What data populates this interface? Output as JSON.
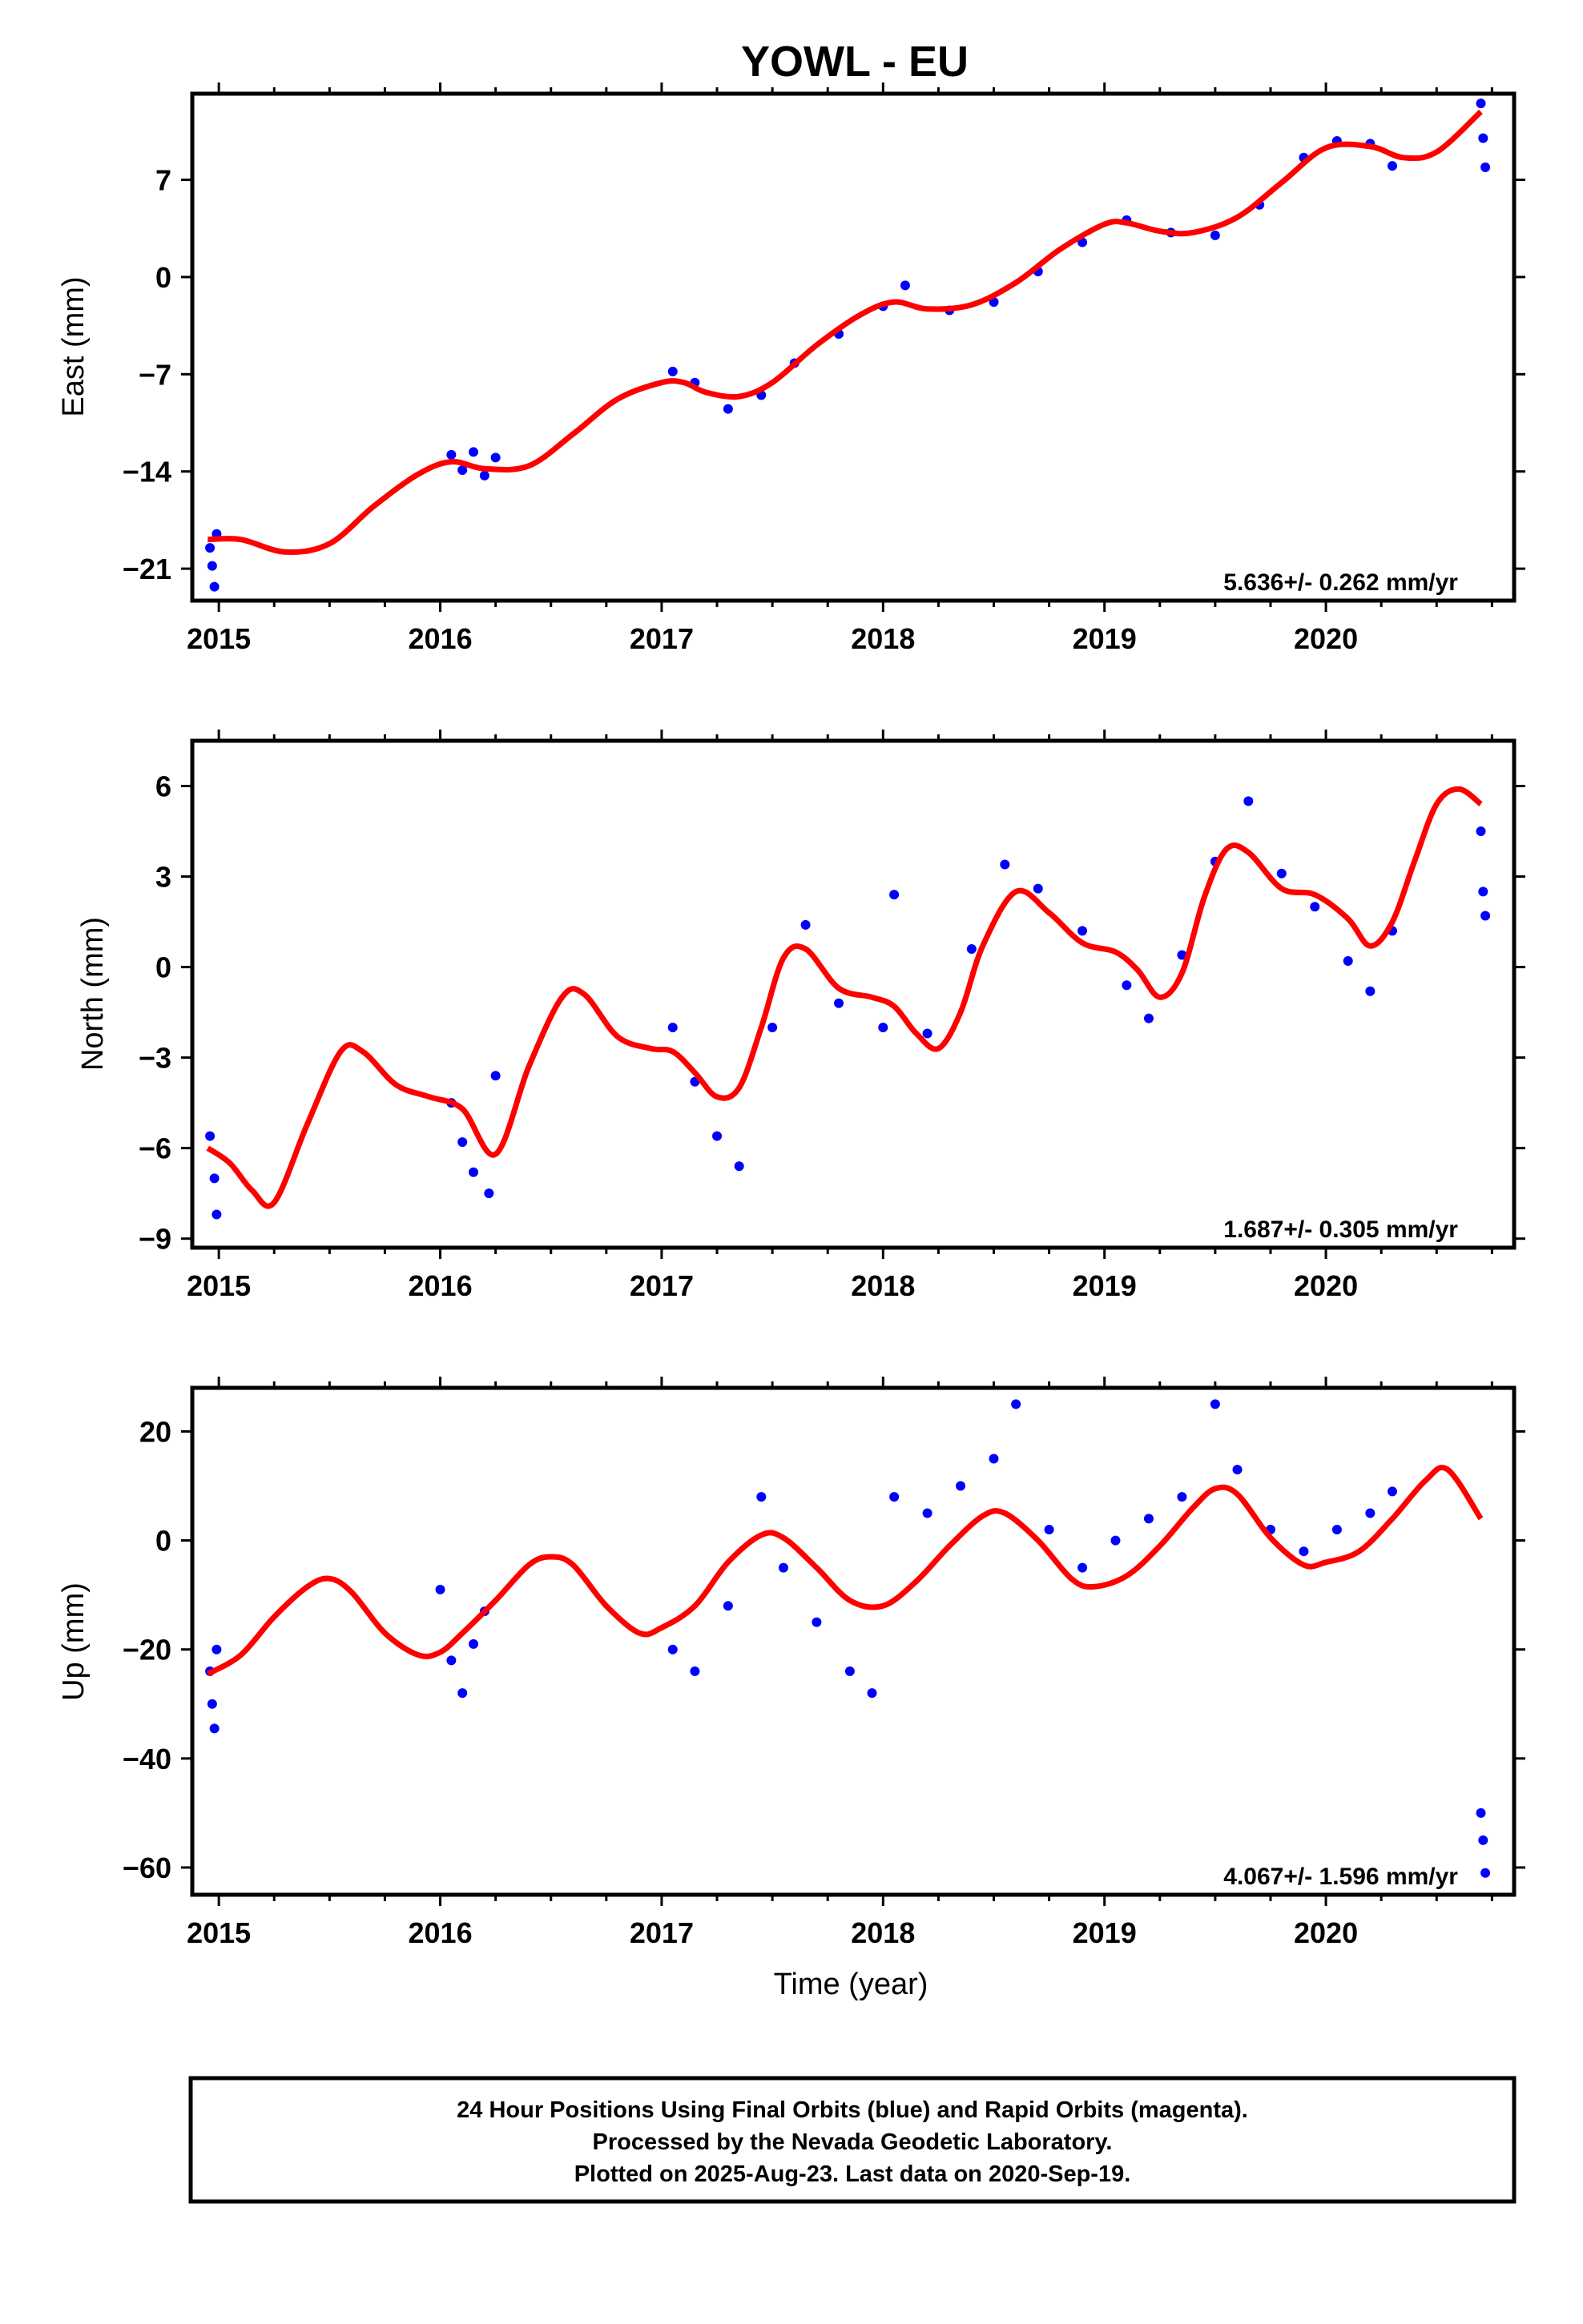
{
  "page": {
    "title": "YOWL - EU",
    "xlabel": "Time (year)"
  },
  "footer": {
    "line1": "24 Hour Positions Using Final Orbits (blue) and Rapid Orbits (magenta).",
    "line2": "Processed by the Nevada Geodetic Laboratory.",
    "line3": "Plotted on 2025-Aug-23. Last data on 2020-Sep-19."
  },
  "colors": {
    "points": "#0000ff",
    "model": "#ff0000",
    "axis": "#000000"
  },
  "chart_data": [
    {
      "type": "scatter",
      "component": "east",
      "ylabel": "East (mm)",
      "rate_label": "5.636+/- 0.262 mm/yr",
      "xlim": [
        2014.88,
        2020.85
      ],
      "ylim": [
        -23.3,
        13.2
      ],
      "xticks": [
        2015,
        2016,
        2017,
        2018,
        2019,
        2020
      ],
      "yticks": [
        -21,
        -14,
        -7,
        0,
        7
      ],
      "ytick_labels": [
        "−21",
        "−14",
        "−7",
        "0",
        "7"
      ],
      "model": {
        "x": [
          2014.95,
          2015.1,
          2015.3,
          2015.5,
          2015.7,
          2015.9,
          2016.05,
          2016.2,
          2016.4,
          2016.6,
          2016.8,
          2017.0,
          2017.1,
          2017.2,
          2017.35,
          2017.5,
          2017.7,
          2017.9,
          2018.05,
          2018.2,
          2018.4,
          2018.6,
          2018.8,
          2019.0,
          2019.1,
          2019.25,
          2019.4,
          2019.6,
          2019.8,
          2020.0,
          2020.2,
          2020.35,
          2020.5,
          2020.7
        ],
        "y": [
          -18.9,
          -18.9,
          -19.8,
          -19.2,
          -16.5,
          -14.2,
          -13.3,
          -13.8,
          -13.6,
          -11.3,
          -8.8,
          -7.6,
          -7.6,
          -8.3,
          -8.6,
          -7.6,
          -4.9,
          -2.7,
          -1.8,
          -2.3,
          -2.0,
          -0.4,
          2.0,
          3.8,
          3.9,
          3.3,
          3.2,
          4.3,
          6.8,
          9.3,
          9.4,
          8.6,
          9.0,
          11.9
        ]
      },
      "points": [
        {
          "x": 2014.96,
          "y": -19.5
        },
        {
          "x": 2014.97,
          "y": -20.8
        },
        {
          "x": 2014.98,
          "y": -22.3
        },
        {
          "x": 2014.99,
          "y": -18.5
        },
        {
          "x": 2016.05,
          "y": -12.8
        },
        {
          "x": 2016.1,
          "y": -13.9
        },
        {
          "x": 2016.15,
          "y": -12.6
        },
        {
          "x": 2016.2,
          "y": -14.3
        },
        {
          "x": 2016.25,
          "y": -13.0
        },
        {
          "x": 2017.05,
          "y": -6.8
        },
        {
          "x": 2017.15,
          "y": -7.6
        },
        {
          "x": 2017.3,
          "y": -9.5
        },
        {
          "x": 2017.45,
          "y": -8.5
        },
        {
          "x": 2017.6,
          "y": -6.2
        },
        {
          "x": 2017.8,
          "y": -4.1
        },
        {
          "x": 2018.0,
          "y": -2.1
        },
        {
          "x": 2018.1,
          "y": -0.6
        },
        {
          "x": 2018.3,
          "y": -2.4
        },
        {
          "x": 2018.5,
          "y": -1.8
        },
        {
          "x": 2018.7,
          "y": 0.4
        },
        {
          "x": 2018.9,
          "y": 2.5
        },
        {
          "x": 2019.1,
          "y": 4.1
        },
        {
          "x": 2019.3,
          "y": 3.2
        },
        {
          "x": 2019.5,
          "y": 3.0
        },
        {
          "x": 2019.7,
          "y": 5.2
        },
        {
          "x": 2019.9,
          "y": 8.6
        },
        {
          "x": 2020.05,
          "y": 9.8
        },
        {
          "x": 2020.2,
          "y": 9.6
        },
        {
          "x": 2020.3,
          "y": 8.0
        },
        {
          "x": 2020.7,
          "y": 12.5
        },
        {
          "x": 2020.71,
          "y": 10.0
        },
        {
          "x": 2020.72,
          "y": 7.9
        }
      ]
    },
    {
      "type": "scatter",
      "component": "north",
      "ylabel": "North (mm)",
      "rate_label": "1.687+/- 0.305 mm/yr",
      "xlim": [
        2014.88,
        2020.85
      ],
      "ylim": [
        -9.3,
        7.5
      ],
      "xticks": [
        2015,
        2016,
        2017,
        2018,
        2019,
        2020
      ],
      "yticks": [
        -9,
        -6,
        -3,
        0,
        3,
        6
      ],
      "ytick_labels": [
        "−9",
        "−6",
        "−3",
        "0",
        "3",
        "6"
      ],
      "model": {
        "x": [
          2014.95,
          2015.05,
          2015.15,
          2015.25,
          2015.4,
          2015.55,
          2015.65,
          2015.8,
          2015.95,
          2016.1,
          2016.25,
          2016.4,
          2016.55,
          2016.65,
          2016.8,
          2016.95,
          2017.05,
          2017.15,
          2017.25,
          2017.35,
          2017.45,
          2017.55,
          2017.65,
          2017.8,
          2017.95,
          2018.05,
          2018.15,
          2018.25,
          2018.35,
          2018.45,
          2018.6,
          2018.75,
          2018.9,
          2019.05,
          2019.15,
          2019.25,
          2019.35,
          2019.45,
          2019.55,
          2019.65,
          2019.8,
          2019.95,
          2020.1,
          2020.2,
          2020.3,
          2020.4,
          2020.5,
          2020.6,
          2020.7
        ],
        "y": [
          -6.0,
          -6.5,
          -7.4,
          -7.8,
          -5.2,
          -2.8,
          -2.8,
          -3.9,
          -4.3,
          -4.7,
          -6.2,
          -3.3,
          -1.0,
          -0.9,
          -2.3,
          -2.7,
          -2.8,
          -3.5,
          -4.3,
          -4.0,
          -2.0,
          0.3,
          0.6,
          -0.7,
          -1.0,
          -1.3,
          -2.2,
          -2.7,
          -1.5,
          0.7,
          2.5,
          1.8,
          0.8,
          0.5,
          -0.1,
          -1.0,
          -0.2,
          2.3,
          3.9,
          3.8,
          2.6,
          2.4,
          1.6,
          0.7,
          1.5,
          3.5,
          5.4,
          5.9,
          5.4
        ]
      },
      "points": [
        {
          "x": 2014.96,
          "y": -5.6
        },
        {
          "x": 2014.98,
          "y": -7.0
        },
        {
          "x": 2014.99,
          "y": -8.2
        },
        {
          "x": 2016.05,
          "y": -4.5
        },
        {
          "x": 2016.1,
          "y": -5.8
        },
        {
          "x": 2016.15,
          "y": -6.8
        },
        {
          "x": 2016.22,
          "y": -7.5
        },
        {
          "x": 2016.25,
          "y": -3.6
        },
        {
          "x": 2017.05,
          "y": -2.0
        },
        {
          "x": 2017.15,
          "y": -3.8
        },
        {
          "x": 2017.25,
          "y": -5.6
        },
        {
          "x": 2017.35,
          "y": -6.6
        },
        {
          "x": 2017.5,
          "y": -2.0
        },
        {
          "x": 2017.65,
          "y": 1.4
        },
        {
          "x": 2017.8,
          "y": -1.2
        },
        {
          "x": 2018.0,
          "y": -2.0
        },
        {
          "x": 2018.05,
          "y": 2.4
        },
        {
          "x": 2018.2,
          "y": -2.2
        },
        {
          "x": 2018.4,
          "y": 0.6
        },
        {
          "x": 2018.55,
          "y": 3.4
        },
        {
          "x": 2018.7,
          "y": 2.6
        },
        {
          "x": 2018.9,
          "y": 1.2
        },
        {
          "x": 2019.1,
          "y": -0.6
        },
        {
          "x": 2019.2,
          "y": -1.7
        },
        {
          "x": 2019.35,
          "y": 0.4
        },
        {
          "x": 2019.5,
          "y": 3.5
        },
        {
          "x": 2019.65,
          "y": 5.5
        },
        {
          "x": 2019.8,
          "y": 3.1
        },
        {
          "x": 2019.95,
          "y": 2.0
        },
        {
          "x": 2020.1,
          "y": 0.2
        },
        {
          "x": 2020.2,
          "y": -0.8
        },
        {
          "x": 2020.3,
          "y": 1.2
        },
        {
          "x": 2020.7,
          "y": 4.5
        },
        {
          "x": 2020.71,
          "y": 2.5
        },
        {
          "x": 2020.72,
          "y": 1.7
        }
      ]
    },
    {
      "type": "scatter",
      "component": "up",
      "ylabel": "Up (mm)",
      "rate_label": "4.067+/- 1.596 mm/yr",
      "xlim": [
        2014.88,
        2020.85
      ],
      "ylim": [
        -65,
        28
      ],
      "xticks": [
        2015,
        2016,
        2017,
        2018,
        2019,
        2020
      ],
      "yticks": [
        -60,
        -40,
        -20,
        0,
        20
      ],
      "ytick_labels": [
        "−60",
        "−40",
        "−20",
        "0",
        "20"
      ],
      "model": {
        "x": [
          2014.95,
          2015.1,
          2015.25,
          2015.4,
          2015.5,
          2015.6,
          2015.75,
          2015.9,
          2016.0,
          2016.1,
          2016.25,
          2016.4,
          2016.5,
          2016.6,
          2016.75,
          2016.9,
          2017.0,
          2017.15,
          2017.3,
          2017.45,
          2017.55,
          2017.7,
          2017.85,
          2018.0,
          2018.15,
          2018.3,
          2018.45,
          2018.55,
          2018.7,
          2018.85,
          2018.95,
          2019.1,
          2019.25,
          2019.4,
          2019.5,
          2019.6,
          2019.75,
          2019.9,
          2020.0,
          2020.15,
          2020.3,
          2020.45,
          2020.55,
          2020.7
        ],
        "y": [
          -24.5,
          -21.0,
          -14.0,
          -8.5,
          -7.0,
          -9.5,
          -17.0,
          -21.0,
          -20.5,
          -17.0,
          -11.0,
          -4.5,
          -3.0,
          -4.5,
          -12.0,
          -17.0,
          -16.0,
          -12.0,
          -4.0,
          1.0,
          0.5,
          -5.0,
          -11.0,
          -12.0,
          -7.5,
          -1.0,
          4.5,
          5.0,
          0.0,
          -7.0,
          -8.5,
          -6.5,
          -1.0,
          6.0,
          9.5,
          8.5,
          0.5,
          -4.5,
          -4.0,
          -2.0,
          4.0,
          11.0,
          13.0,
          4.0
        ]
      },
      "points": [
        {
          "x": 2014.96,
          "y": -24.0
        },
        {
          "x": 2014.97,
          "y": -30.0
        },
        {
          "x": 2014.98,
          "y": -34.5
        },
        {
          "x": 2014.99,
          "y": -20.0
        },
        {
          "x": 2016.0,
          "y": -9.0
        },
        {
          "x": 2016.05,
          "y": -22.0
        },
        {
          "x": 2016.1,
          "y": -28.0
        },
        {
          "x": 2016.15,
          "y": -19.0
        },
        {
          "x": 2016.2,
          "y": -13.0
        },
        {
          "x": 2017.05,
          "y": -20.0
        },
        {
          "x": 2017.15,
          "y": -24.0
        },
        {
          "x": 2017.3,
          "y": -12.0
        },
        {
          "x": 2017.45,
          "y": 8.0
        },
        {
          "x": 2017.55,
          "y": -5.0
        },
        {
          "x": 2017.7,
          "y": -15.0
        },
        {
          "x": 2017.85,
          "y": -24.0
        },
        {
          "x": 2017.95,
          "y": -28.0
        },
        {
          "x": 2018.05,
          "y": 8.0
        },
        {
          "x": 2018.2,
          "y": 5.0
        },
        {
          "x": 2018.35,
          "y": 10.0
        },
        {
          "x": 2018.5,
          "y": 15.0
        },
        {
          "x": 2018.6,
          "y": 25.0
        },
        {
          "x": 2018.75,
          "y": 2.0
        },
        {
          "x": 2018.9,
          "y": -5.0
        },
        {
          "x": 2019.05,
          "y": 0.0
        },
        {
          "x": 2019.2,
          "y": 4.0
        },
        {
          "x": 2019.35,
          "y": 8.0
        },
        {
          "x": 2019.5,
          "y": 25.0
        },
        {
          "x": 2019.6,
          "y": 13.0
        },
        {
          "x": 2019.75,
          "y": 2.0
        },
        {
          "x": 2019.9,
          "y": -2.0
        },
        {
          "x": 2020.05,
          "y": 2.0
        },
        {
          "x": 2020.2,
          "y": 5.0
        },
        {
          "x": 2020.3,
          "y": 9.0
        },
        {
          "x": 2020.7,
          "y": -50.0
        },
        {
          "x": 2020.71,
          "y": -55.0
        },
        {
          "x": 2020.72,
          "y": -61.0
        }
      ]
    }
  ]
}
